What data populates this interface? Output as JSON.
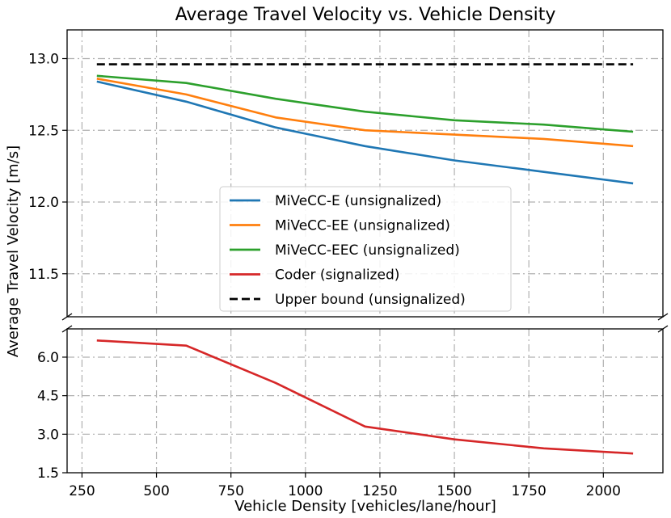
{
  "chart_data": {
    "type": "line",
    "title": "Average Travel Velocity vs. Vehicle Density",
    "xlabel": "Vehicle Density [vehicles/lane/hour]",
    "ylabel": "Average Travel Velocity [m/s]",
    "xlim": [
      200,
      2200
    ],
    "x_ticks": [
      250,
      500,
      750,
      1000,
      1250,
      1500,
      1750,
      2000
    ],
    "x_tick_labels": [
      "250",
      "500",
      "750",
      "1000",
      "1250",
      "1500",
      "1750",
      "2000"
    ],
    "panels": [
      {
        "name": "upper",
        "ylim": [
          11.2,
          13.2
        ],
        "y_ticks": [
          11.5,
          12.0,
          12.5,
          13.0
        ],
        "y_tick_labels": [
          "11.5",
          "12.0",
          "12.5",
          "13.0"
        ]
      },
      {
        "name": "lower",
        "ylim": [
          1.5,
          7.1
        ],
        "y_ticks": [
          1.5,
          3.0,
          4.5,
          6.0
        ],
        "y_tick_labels": [
          "1.5",
          "3.0",
          "4.5",
          "6.0"
        ]
      }
    ],
    "series": [
      {
        "name": "MiVeCC-E (unsignalized)",
        "color": "#1f77b4",
        "style": "solid",
        "panel": "upper",
        "x": [
          300,
          600,
          900,
          1200,
          1500,
          1800,
          2100
        ],
        "values": [
          12.84,
          12.7,
          12.52,
          12.39,
          12.29,
          12.21,
          12.13
        ]
      },
      {
        "name": "MiVeCC-EE (unsignalized)",
        "color": "#ff7f0e",
        "style": "solid",
        "panel": "upper",
        "x": [
          300,
          600,
          900,
          1200,
          1500,
          1800,
          2100
        ],
        "values": [
          12.86,
          12.75,
          12.59,
          12.5,
          12.47,
          12.44,
          12.39
        ]
      },
      {
        "name": "MiVeCC-EEC (unsignalized)",
        "color": "#2ca02c",
        "style": "solid",
        "panel": "upper",
        "x": [
          300,
          600,
          900,
          1200,
          1500,
          1800,
          2100
        ],
        "values": [
          12.88,
          12.83,
          12.72,
          12.63,
          12.57,
          12.54,
          12.49
        ]
      },
      {
        "name": "Coder (signalized)",
        "color": "#d62728",
        "style": "solid",
        "panel": "lower",
        "x": [
          300,
          600,
          900,
          1200,
          1500,
          1800,
          2100
        ],
        "values": [
          6.65,
          6.45,
          5.0,
          3.3,
          2.8,
          2.45,
          2.25
        ]
      },
      {
        "name": "Upper bound (unsignalized)",
        "color": "#000000",
        "style": "dashed",
        "panel": "upper",
        "x": [
          300,
          2100
        ],
        "values": [
          12.96,
          12.96
        ]
      }
    ],
    "legend": {
      "position": "center-right"
    },
    "grid": true
  }
}
